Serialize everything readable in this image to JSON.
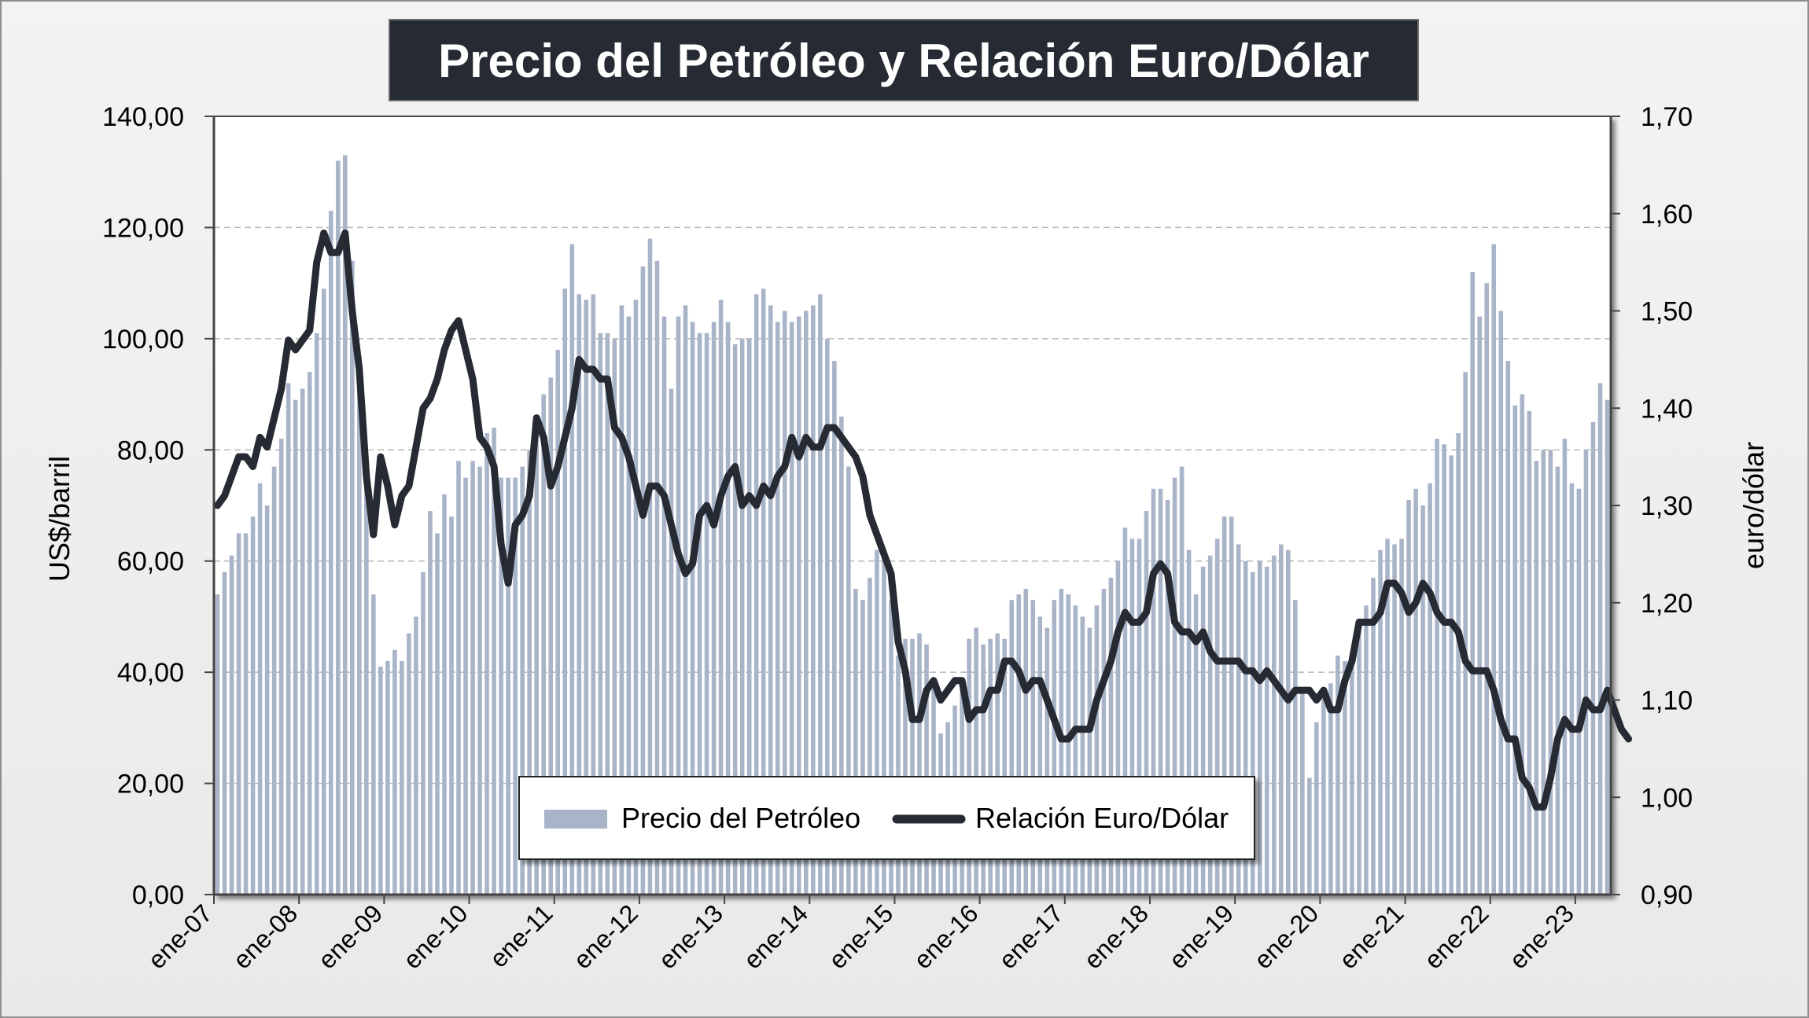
{
  "chart_data": {
    "type": "bar+line",
    "title": "Precio del Petróleo y Relación Euro/Dólar",
    "ylabel_left": "US$/barril",
    "ylabel_right": "euro/dólar",
    "ylim_left": [
      0,
      140
    ],
    "ylim_right": [
      0.9,
      1.7
    ],
    "yticks_left": [
      "0,00",
      "20,00",
      "40,00",
      "60,00",
      "80,00",
      "100,00",
      "120,00",
      "140,00"
    ],
    "yticks_right": [
      "0,90",
      "1,00",
      "1,10",
      "1,20",
      "1,30",
      "1,40",
      "1,50",
      "1,60",
      "1,70"
    ],
    "xticks": [
      "ene-07",
      "ene-08",
      "ene-09",
      "ene-10",
      "ene-11",
      "ene-12",
      "ene-13",
      "ene-14",
      "ene-15",
      "ene-16",
      "ene-17",
      "ene-18",
      "ene-19",
      "ene-20",
      "ene-21",
      "ene-22",
      "ene-23"
    ],
    "start_month": "ene-07",
    "grid": "horizontal dashed",
    "legend_position": "bottom-center",
    "colors": {
      "bars": "#a9b4c8",
      "line": "#262b33",
      "title_bg": "#262b33",
      "title_text": "#ffffff"
    },
    "series": [
      {
        "name": "Precio del Petróleo",
        "kind": "bar",
        "axis": "left",
        "values": [
          54,
          58,
          61,
          65,
          65,
          68,
          74,
          70,
          77,
          82,
          92,
          89,
          91,
          94,
          101,
          109,
          123,
          132,
          133,
          114,
          97,
          77,
          54,
          41,
          42,
          44,
          42,
          47,
          50,
          58,
          69,
          65,
          72,
          68,
          78,
          75,
          78,
          77,
          83,
          84,
          75,
          75,
          75,
          77,
          80,
          85,
          90,
          93,
          98,
          109,
          117,
          108,
          107,
          108,
          101,
          101,
          100,
          106,
          104,
          107,
          113,
          118,
          114,
          104,
          91,
          104,
          106,
          103,
          101,
          101,
          103,
          107,
          103,
          99,
          100,
          100,
          108,
          109,
          106,
          103,
          105,
          103,
          104,
          105,
          106,
          108,
          100,
          96,
          86,
          77,
          55,
          53,
          57,
          62,
          62,
          53,
          43,
          46,
          46,
          47,
          45,
          37,
          29,
          31,
          34,
          38,
          46,
          48,
          45,
          46,
          47,
          46,
          53,
          54,
          55,
          53,
          50,
          48,
          53,
          55,
          54,
          52,
          50,
          48,
          52,
          55,
          57,
          60,
          66,
          64,
          64,
          69,
          73,
          73,
          71,
          75,
          77,
          62,
          54,
          59,
          61,
          64,
          68,
          68,
          63,
          60,
          58,
          60,
          59,
          61,
          63,
          62,
          53,
          37,
          21,
          31,
          36,
          38,
          43,
          42,
          42,
          48,
          52,
          57,
          62,
          64,
          63,
          64,
          71,
          73,
          70,
          74,
          82,
          81,
          79,
          83,
          94,
          112,
          104,
          110,
          117,
          105,
          96,
          88,
          90,
          87,
          78,
          80,
          80,
          77,
          82,
          74,
          73,
          80,
          85,
          92,
          89
        ]
      },
      {
        "name": "Relación Euro/Dólar",
        "kind": "line",
        "axis": "right",
        "values": [
          1.3,
          1.31,
          1.33,
          1.35,
          1.35,
          1.34,
          1.37,
          1.36,
          1.39,
          1.42,
          1.47,
          1.46,
          1.47,
          1.48,
          1.55,
          1.58,
          1.56,
          1.56,
          1.58,
          1.5,
          1.44,
          1.33,
          1.27,
          1.35,
          1.32,
          1.28,
          1.31,
          1.32,
          1.36,
          1.4,
          1.41,
          1.43,
          1.46,
          1.48,
          1.49,
          1.46,
          1.43,
          1.37,
          1.36,
          1.34,
          1.26,
          1.22,
          1.28,
          1.29,
          1.31,
          1.39,
          1.37,
          1.32,
          1.34,
          1.37,
          1.4,
          1.45,
          1.44,
          1.44,
          1.43,
          1.43,
          1.38,
          1.37,
          1.35,
          1.32,
          1.29,
          1.32,
          1.32,
          1.31,
          1.28,
          1.25,
          1.23,
          1.24,
          1.29,
          1.3,
          1.28,
          1.31,
          1.33,
          1.34,
          1.3,
          1.31,
          1.3,
          1.32,
          1.31,
          1.33,
          1.34,
          1.37,
          1.35,
          1.37,
          1.36,
          1.36,
          1.38,
          1.38,
          1.37,
          1.36,
          1.35,
          1.33,
          1.29,
          1.27,
          1.25,
          1.23,
          1.16,
          1.13,
          1.08,
          1.08,
          1.11,
          1.12,
          1.1,
          1.11,
          1.12,
          1.12,
          1.08,
          1.09,
          1.09,
          1.11,
          1.11,
          1.14,
          1.14,
          1.13,
          1.11,
          1.12,
          1.12,
          1.1,
          1.08,
          1.06,
          1.06,
          1.07,
          1.07,
          1.07,
          1.1,
          1.12,
          1.14,
          1.17,
          1.19,
          1.18,
          1.18,
          1.19,
          1.23,
          1.24,
          1.23,
          1.18,
          1.17,
          1.17,
          1.16,
          1.17,
          1.15,
          1.14,
          1.14,
          1.14,
          1.14,
          1.13,
          1.13,
          1.12,
          1.13,
          1.12,
          1.11,
          1.1,
          1.11,
          1.11,
          1.11,
          1.1,
          1.11,
          1.09,
          1.09,
          1.12,
          1.14,
          1.18,
          1.18,
          1.18,
          1.19,
          1.22,
          1.22,
          1.21,
          1.19,
          1.2,
          1.22,
          1.21,
          1.19,
          1.18,
          1.18,
          1.17,
          1.14,
          1.13,
          1.13,
          1.13,
          1.11,
          1.08,
          1.06,
          1.06,
          1.02,
          1.01,
          0.99,
          0.99,
          1.02,
          1.06,
          1.08,
          1.07,
          1.07,
          1.1,
          1.09,
          1.09,
          1.11,
          1.09,
          1.07,
          1.06
        ]
      }
    ]
  }
}
